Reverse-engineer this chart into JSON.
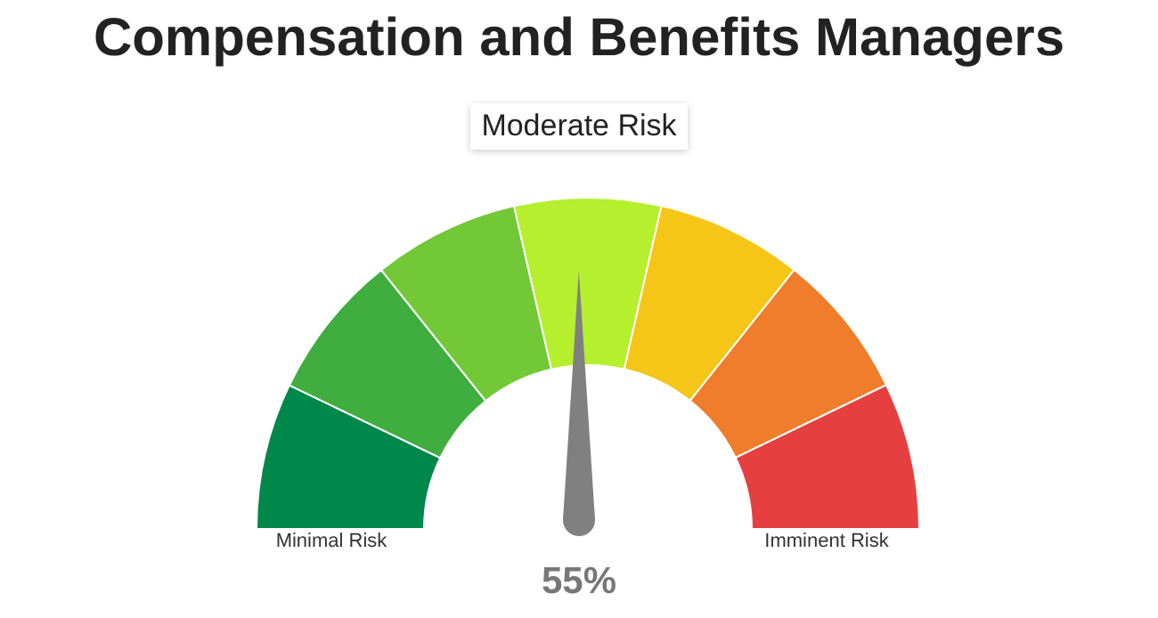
{
  "chart_data": {
    "type": "donut",
    "title": "Compensation and Benefits Managers",
    "categories": [
      null,
      null,
      null,
      "Moderate Risk",
      null,
      null,
      null
    ],
    "values": [
      14.28,
      14.28,
      14.28,
      14.28,
      14.28,
      14.28,
      14.32
    ],
    "colors": [
      "#00884a",
      "#3fae3f",
      "#72c837",
      "#b5ef2e",
      "#f5c518",
      "#ef7d2b",
      "#e5403f"
    ],
    "needle": "Moderate Risk",
    "annotations": [
      "Minimal Risk",
      "Imminent Risk",
      "55%"
    ],
    "legend": false
  }
}
